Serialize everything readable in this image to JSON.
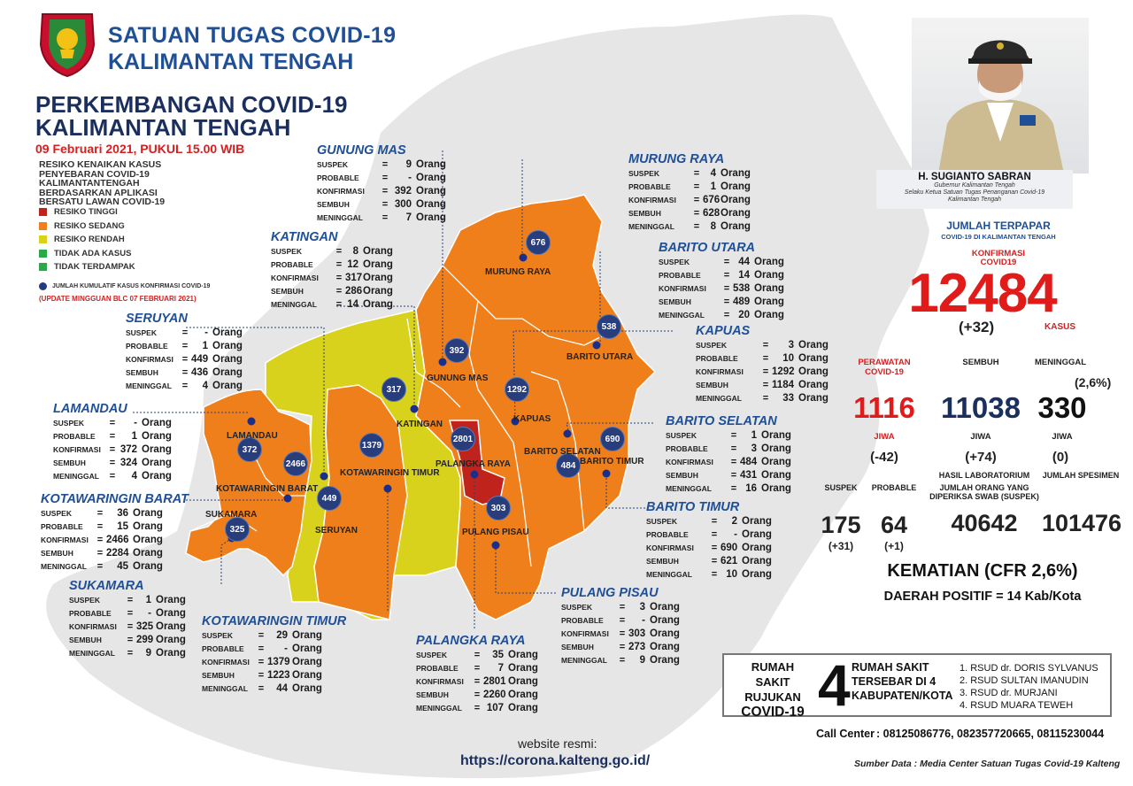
{
  "header": {
    "org_line1": "SATUAN TUGAS COVID-19",
    "org_line2": "KALIMANTAN TENGAH",
    "title_line1": "PERKEMBANGAN COVID-19",
    "title_line2": "KALIMANTAN TENGAH",
    "date": "09 Februari 2021, PUKUL 15.00 WIB"
  },
  "legend": {
    "description_lines": [
      "RESIKO KENAIKAN KASUS",
      "PENYEBARAN COVID-19",
      "KALIMANTANTENGAH",
      "BERDASARKAN APLIKASI",
      "BERSATU LAWAN COVID-19"
    ],
    "items": [
      {
        "label": "RESIKO TINGGI",
        "color": "#c0221c"
      },
      {
        "label": "RESIKO SEDANG",
        "color": "#ef7f1a"
      },
      {
        "label": "RESIKO RENDAH",
        "color": "#d9d21c"
      },
      {
        "label": "TIDAK ADA KASUS",
        "color": "#2aa84a"
      },
      {
        "label": "TIDAK TERDAMPAK",
        "color": "#2aa84a"
      }
    ],
    "dot_label": "JUMLAH KUMULATIF KASUS KONFIRMASI COVID-19",
    "update_note": "(UPDATE MINGGUAN BLC 07 FEBRUARI 2021)"
  },
  "labels": {
    "suspek": "SUSPEK",
    "probable": "PROBABLE",
    "konfirmasi": "KONFIRMASI",
    "sembuh": "SEMBUH",
    "meninggal": "MENINGGAL",
    "eq": "=",
    "unit": "Orang"
  },
  "regions": {
    "gunung_mas": {
      "name": "GUNUNG MAS",
      "suspek": "9",
      "probable": "-",
      "konfirmasi": "392",
      "sembuh": "300",
      "meninggal": "7",
      "map_label": "GUNUNG MAS",
      "bubble": "392"
    },
    "murung_raya": {
      "name": "MURUNG RAYA",
      "suspek": "4",
      "probable": "1",
      "konfirmasi": "676",
      "sembuh": "628",
      "meninggal": "8",
      "map_label": "MURUNG RAYA",
      "bubble": "676"
    },
    "katingan": {
      "name": "KATINGAN",
      "suspek": "8",
      "probable": "12",
      "konfirmasi": "317",
      "sembuh": "286",
      "meninggal": "14",
      "map_label": "KATINGAN",
      "bubble": "317"
    },
    "barito_utara": {
      "name": "BARITO UTARA",
      "suspek": "44",
      "probable": "14",
      "konfirmasi": "538",
      "sembuh": "489",
      "meninggal": "20",
      "map_label": "BARITO UTARA",
      "bubble": "538"
    },
    "seruyan": {
      "name": "SERUYAN",
      "suspek": "-",
      "probable": "1",
      "konfirmasi": "449",
      "sembuh": "436",
      "meninggal": "4",
      "map_label": "SERUYAN",
      "bubble": "449"
    },
    "kapuas": {
      "name": "KAPUAS",
      "suspek": "3",
      "probable": "10",
      "konfirmasi": "1292",
      "sembuh": "1184",
      "meninggal": "33",
      "map_label": "KAPUAS",
      "bubble": "1292"
    },
    "lamandau": {
      "name": "LAMANDAU",
      "suspek": "-",
      "probable": "1",
      "konfirmasi": "372",
      "sembuh": "324",
      "meninggal": "4",
      "map_label": "LAMANDAU",
      "bubble": "372"
    },
    "barito_selatan": {
      "name": "BARITO SELATAN",
      "suspek": "1",
      "probable": "3",
      "konfirmasi": "484",
      "sembuh": "431",
      "meninggal": "16",
      "map_label": "BARITO SELATAN",
      "bubble": "484"
    },
    "kotawaringin_barat": {
      "name": "KOTAWARINGIN BARAT",
      "suspek": "36",
      "probable": "15",
      "konfirmasi": "2466",
      "sembuh": "2284",
      "meninggal": "45",
      "map_label": "KOTAWARINGIN BARAT",
      "bubble": "2466"
    },
    "barito_timur": {
      "name": "BARITO TIMUR",
      "suspek": "2",
      "probable": "-",
      "konfirmasi": "690",
      "sembuh": "621",
      "meninggal": "10",
      "map_label": "BARITO TIMUR",
      "bubble": "690"
    },
    "sukamara": {
      "name": "SUKAMARA",
      "suspek": "1",
      "probable": "-",
      "konfirmasi": "325",
      "sembuh": "299",
      "meninggal": "9",
      "map_label": "SUKAMARA",
      "bubble": "325"
    },
    "kotawaringin_timur": {
      "name": "KOTAWARINGIN TIMUR",
      "suspek": "29",
      "probable": "-",
      "konfirmasi": "1379",
      "sembuh": "1223",
      "meninggal": "44",
      "map_label": "KOTAWARINGIN TIMUR",
      "bubble": "1379"
    },
    "palangka_raya": {
      "name": "PALANGKA RAYA",
      "suspek": "35",
      "probable": "7",
      "konfirmasi": "2801",
      "sembuh": "2260",
      "meninggal": "107",
      "map_label": "PALANGKA RAYA",
      "bubble": "2801"
    },
    "pulang_pisau": {
      "name": "PULANG PISAU",
      "suspek": "3",
      "probable": "-",
      "konfirmasi": "303",
      "sembuh": "273",
      "meninggal": "9",
      "map_label": "PULANG PISAU",
      "bubble": "303"
    }
  },
  "governor": {
    "name": "H. SUGIANTO SABRAN",
    "role_line1": "Gubernur Kalimantan Tengah",
    "role_line2": "Selaku Ketua Satuan Tugas Penanganan Covid-19",
    "role_line3": "Kalimantan Tengah"
  },
  "summary": {
    "jumlah_terpapar": "JUMLAH TERPAPAR",
    "jumlah_sub": "COVID-19 DI KALIMANTAN TENGAH",
    "konfirmasi_label1": "KONFIRMASI",
    "konfirmasi_label2": "COVID19",
    "total": "12484",
    "total_delta": "(+32)",
    "kasus": "KASUS",
    "perawatan_label1": "PERAWATAN",
    "perawatan_label2": "COVID-19",
    "perawatan": "1116",
    "perawatan_delta": "(-42)",
    "sembuh_label": "SEMBUH",
    "sembuh": "11038",
    "sembuh_delta": "(+74)",
    "meninggal_label": "MENINGGAL",
    "meninggal": "330",
    "meninggal_delta": "(0)",
    "meninggal_pct": "(2,6%)",
    "jiwa": "JIWA",
    "suspek_label": "SUSPEK",
    "suspek": "175",
    "suspek_delta": "(+31)",
    "probable_label": "PROBABLE",
    "probable": "64",
    "probable_delta": "(+1)",
    "lab_label1": "HASIL LABORATORIUM",
    "lab_label2": "JUMLAH ORANG YANG",
    "lab_label3": "DIPERIKSA SWAB (SUSPEK)",
    "lab": "40642",
    "spesimen_label": "JUMLAH SPESIMEN",
    "spesimen": "101476",
    "kematian": "KEMATIAN (CFR 2,6%)",
    "daerah_positif": "DAERAH POSITIF = 14 Kab/Kota"
  },
  "hospitals": {
    "left_line1": "RUMAH SAKIT",
    "left_line2": "RUJUKAN",
    "left_line3": "COVID-19",
    "count": "4",
    "mid_line1": "RUMAH SAKIT",
    "mid_line2": "TERSEBAR DI 4",
    "mid_line3": "KABUPATEN/KOTA",
    "list": [
      "1. RSUD dr. DORIS SYLVANUS",
      "2. RSUD SULTAN IMANUDIN",
      "3. RSUD dr. MURJANI",
      "4. RSUD MUARA TEWEH"
    ]
  },
  "footer": {
    "call_center_label": "Call Center",
    "call_center_numbers": ": 08125086776, 082357720665, 08115230044",
    "source": "Sumber Data : Media Center Satuan Tugas Covid-19 Kalteng",
    "website_label": "website resmi:",
    "website_url": "https://corona.kalteng.go.id/"
  },
  "colors": {
    "high": "#c0221c",
    "medium": "#ef7f1a",
    "low": "#d9d21c",
    "background_land": "#e5e5e5",
    "bubble": "#283d7c",
    "accent_blue": "#1f4f96",
    "accent_red": "#e11a1a"
  }
}
